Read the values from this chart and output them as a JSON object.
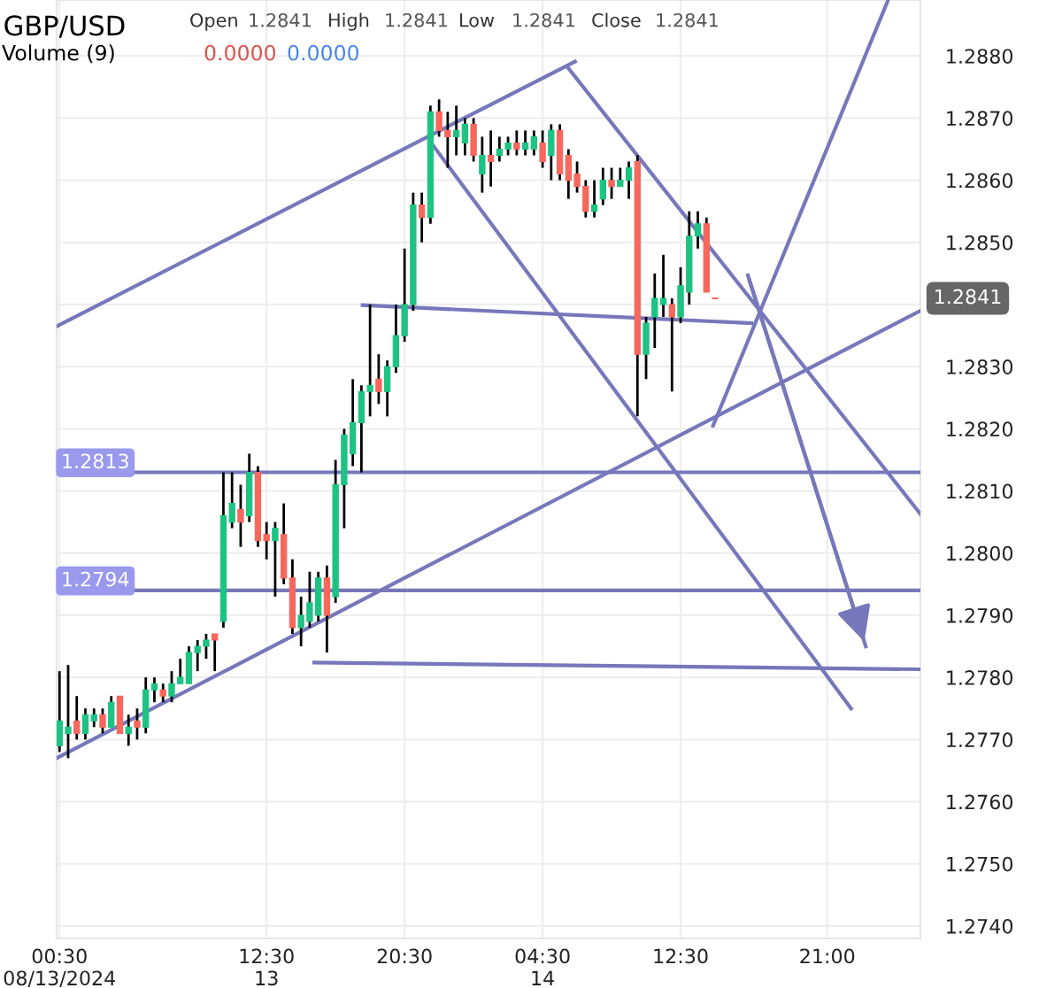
{
  "chart_data": {
    "type": "candlestick",
    "title": "GBP/USD",
    "annotations": [
      "Open",
      "1.2841",
      "High",
      "1.2841",
      "Low",
      "1.2841",
      "Close",
      "1.2841",
      "Volume (9)",
      "0.0000",
      "0.0000",
      "1.2841"
    ],
    "series": [
      {
        "type": "candlestick",
        "color": "#1dc383",
        "x": [
          "2024-08-13T00:30",
          "2024-08-13T01:00",
          "2024-08-13T02:00",
          "2024-08-13T02:30",
          "2024-08-13T03:30",
          "2024-08-13T04:30",
          "2024-08-13T05:30",
          "2024-08-13T06:00",
          "2024-08-13T07:00",
          "2024-08-13T07:30",
          "2024-08-13T08:00",
          "2024-08-13T08:30",
          "2024-08-13T09:00",
          "2024-08-13T10:00",
          "2024-08-13T10:30",
          "2024-08-13T11:30",
          "2024-08-13T13:00",
          "2024-08-13T14:30",
          "2024-08-13T15:00",
          "2024-08-13T15:30",
          "2024-08-13T16:30",
          "2024-08-13T17:00",
          "2024-08-13T17:30",
          "2024-08-13T18:00",
          "2024-08-13T18:30",
          "2024-08-13T19:30",
          "2024-08-13T20:00",
          "2024-08-13T20:30",
          "2024-08-13T21:00",
          "2024-08-13T22:00",
          "2024-08-13T23:30",
          "2024-08-14T00:00",
          "2024-08-14T01:00",
          "2024-08-14T02:00",
          "2024-08-14T02:30",
          "2024-08-14T03:30",
          "2024-08-14T04:00",
          "2024-08-14T05:00",
          "2024-08-14T07:30",
          "2024-08-14T08:00",
          "2024-08-14T09:00",
          "2024-08-14T09:30",
          "2024-08-14T10:30",
          "2024-08-14T11:00",
          "2024-08-14T11:30",
          "2024-08-14T12:30",
          "2024-08-14T13:00",
          "2024-08-14T13:30"
        ],
        "ohlc": [
          [
            1.2769,
            1.2781,
            1.2768,
            1.2773
          ],
          [
            1.2771,
            1.2782,
            1.2767,
            1.2772
          ],
          [
            1.2771,
            1.2775,
            1.277,
            1.2774
          ],
          [
            1.2773,
            1.2775,
            1.2772,
            1.2774
          ],
          [
            1.2772,
            1.2777,
            1.2772,
            1.2776
          ],
          [
            1.2771,
            1.2774,
            1.2769,
            1.2772
          ],
          [
            1.2772,
            1.278,
            1.2771,
            1.2778
          ],
          [
            1.2778,
            1.278,
            1.2776,
            1.2779
          ],
          [
            1.2777,
            1.2781,
            1.2776,
            1.2779
          ],
          [
            1.2779,
            1.2783,
            1.2779,
            1.278
          ],
          [
            1.2779,
            1.2785,
            1.2779,
            1.2784
          ],
          [
            1.2784,
            1.2786,
            1.2781,
            1.2785
          ],
          [
            1.2785,
            1.2787,
            1.2783,
            1.2786
          ],
          [
            1.2789,
            1.2813,
            1.2788,
            1.2806
          ],
          [
            1.2805,
            1.2813,
            1.2804,
            1.2808
          ],
          [
            1.2806,
            1.2816,
            1.2805,
            1.2813
          ],
          [
            1.2802,
            1.2805,
            1.2793,
            1.2804
          ],
          [
            1.2788,
            1.2793,
            1.2785,
            1.279
          ],
          [
            1.2789,
            1.2797,
            1.2788,
            1.2792
          ],
          [
            1.279,
            1.2797,
            1.2789,
            1.2796
          ],
          [
            1.2793,
            1.2815,
            1.2792,
            1.2811
          ],
          [
            1.2811,
            1.282,
            1.2804,
            1.2819
          ],
          [
            1.2816,
            1.2828,
            1.2814,
            1.2821
          ],
          [
            1.2821,
            1.2827,
            1.2813,
            1.2826
          ],
          [
            1.2826,
            1.284,
            1.2822,
            1.2827
          ],
          [
            1.2826,
            1.2831,
            1.2822,
            1.283
          ],
          [
            1.283,
            1.284,
            1.2829,
            1.2835
          ],
          [
            1.2835,
            1.2849,
            1.2834,
            1.284
          ],
          [
            1.284,
            1.2858,
            1.2839,
            1.2856
          ],
          [
            1.2854,
            1.2872,
            1.2853,
            1.2871
          ],
          [
            1.2867,
            1.2872,
            1.2864,
            1.2868
          ],
          [
            1.2866,
            1.287,
            1.2864,
            1.2869
          ],
          [
            1.2861,
            1.2867,
            1.2858,
            1.2864
          ],
          [
            1.2864,
            1.2867,
            1.2863,
            1.2865
          ],
          [
            1.2865,
            1.2867,
            1.2864,
            1.2866
          ],
          [
            1.2865,
            1.2868,
            1.2864,
            1.2866
          ],
          [
            1.2865,
            1.2868,
            1.2864,
            1.2867
          ],
          [
            1.2864,
            1.2869,
            1.286,
            1.2868
          ],
          [
            1.2855,
            1.286,
            1.2854,
            1.2856
          ],
          [
            1.2857,
            1.2862,
            1.2856,
            1.286
          ],
          [
            1.2859,
            1.2862,
            1.2859,
            1.286
          ],
          [
            1.286,
            1.2863,
            1.2857,
            1.2862
          ],
          [
            1.2832,
            1.2838,
            1.2828,
            1.2837
          ],
          [
            1.2838,
            1.2845,
            1.2833,
            1.2841
          ],
          [
            1.284,
            1.2848,
            1.2838,
            1.2841
          ],
          [
            1.2838,
            1.2846,
            1.2837,
            1.2843
          ],
          [
            1.2842,
            1.2855,
            1.284,
            1.2851
          ],
          [
            1.2851,
            1.2855,
            1.2849,
            1.2853
          ]
        ]
      },
      {
        "type": "candlestick",
        "color": "#f6675d",
        "x": [
          "2024-08-13T01:30",
          "2024-08-13T03:00",
          "2024-08-13T04:00",
          "2024-08-13T05:00",
          "2024-08-13T06:30",
          "2024-08-13T09:30",
          "2024-08-13T11:00",
          "2024-08-13T12:00",
          "2024-08-13T12:30",
          "2024-08-13T13:30",
          "2024-08-13T14:00",
          "2024-08-13T16:00",
          "2024-08-13T19:00",
          "2024-08-13T21:30",
          "2024-08-13T22:30",
          "2024-08-13T23:00",
          "2024-08-14T00:30",
          "2024-08-14T01:30",
          "2024-08-14T03:00",
          "2024-08-14T04:30",
          "2024-08-14T05:30",
          "2024-08-14T06:00",
          "2024-08-14T06:30",
          "2024-08-14T07:00",
          "2024-08-14T08:30",
          "2024-08-14T10:00",
          "2024-08-14T12:00",
          "2024-08-14T14:00",
          "2024-08-14T14:30"
        ],
        "ohlc": [
          [
            1.2773,
            1.2777,
            1.277,
            1.2771
          ],
          [
            1.2774,
            1.2775,
            1.2771,
            1.2772
          ],
          [
            1.2777,
            1.2777,
            1.2771,
            1.2771
          ],
          [
            1.2773,
            1.2775,
            1.277,
            1.2772
          ],
          [
            1.2778,
            1.2779,
            1.2776,
            1.2777
          ],
          [
            1.2787,
            1.2787,
            1.2781,
            1.2786
          ],
          [
            1.2807,
            1.2811,
            1.2801,
            1.2805
          ],
          [
            1.2813,
            1.2814,
            1.2801,
            1.2802
          ],
          [
            1.2803,
            1.2805,
            1.2799,
            1.2802
          ],
          [
            1.2803,
            1.2808,
            1.2795,
            1.2796
          ],
          [
            1.2796,
            1.2799,
            1.2787,
            1.2788
          ],
          [
            1.2796,
            1.2798,
            1.2784,
            1.279
          ],
          [
            1.2828,
            1.2832,
            1.2824,
            1.2826
          ],
          [
            1.2856,
            1.2858,
            1.285,
            1.2854
          ],
          [
            1.2871,
            1.2873,
            1.2867,
            1.2868
          ],
          [
            1.2868,
            1.2871,
            1.2862,
            1.2867
          ],
          [
            1.2869,
            1.287,
            1.2863,
            1.2864
          ],
          [
            1.2864,
            1.2868,
            1.2859,
            1.2863
          ],
          [
            1.2866,
            1.2868,
            1.2864,
            1.2865
          ],
          [
            1.2866,
            1.2868,
            1.2862,
            1.2863
          ],
          [
            1.2868,
            1.2869,
            1.286,
            1.2861
          ],
          [
            1.2864,
            1.2865,
            1.2857,
            1.286
          ],
          [
            1.2861,
            1.2863,
            1.2858,
            1.2859
          ],
          [
            1.2859,
            1.286,
            1.2854,
            1.2855
          ],
          [
            1.286,
            1.2862,
            1.2857,
            1.2859
          ],
          [
            1.2863,
            1.2864,
            1.2822,
            1.2832
          ],
          [
            1.284,
            1.2841,
            1.2826,
            1.2838
          ],
          [
            1.2853,
            1.2854,
            1.2842,
            1.2842
          ],
          [
            1.2841,
            1.2841,
            1.2841,
            1.2841
          ]
        ]
      },
      {
        "type": "line",
        "color": "#7777bb",
        "x": [
          "2024-08-13T00:20",
          "2024-08-14T06:23"
        ],
        "values": [
          1.28365,
          1.28791
        ]
      },
      {
        "type": "line",
        "color": "#7777bb",
        "x": [
          "2024-08-13T00:20",
          "2024-08-15T02:24"
        ],
        "values": [
          1.2767,
          1.2839
        ]
      },
      {
        "type": "line",
        "color": "#7777bb",
        "x": [
          "2024-08-14T05:55",
          "2024-08-15T02:24"
        ],
        "values": [
          1.28783,
          1.28063
        ]
      },
      {
        "type": "line",
        "color": "#7777bb",
        "x": [
          "2024-08-13T22:01",
          "2024-08-14T22:23"
        ],
        "values": [
          1.28661,
          1.2775
        ]
      },
      {
        "type": "line",
        "color": "#7777bb",
        "x": [
          "2024-08-13T18:04",
          "2024-08-14T16:36"
        ],
        "values": [
          1.28399,
          1.2837
        ]
      },
      {
        "type": "line",
        "color": "#7777bb",
        "x": [
          "2024-08-13T15:16",
          "2024-08-15T02:24"
        ],
        "values": [
          1.27824,
          1.27813
        ]
      },
      {
        "type": "line",
        "color": "#7777bb",
        "x": [
          "2024-08-14T14:23",
          "2024-08-15T00:30"
        ],
        "values": [
          1.28205,
          1.28888
        ]
      },
      {
        "type": "line",
        "color": "#7777bb",
        "x": [
          "2024-08-14T16:24",
          "2024-08-14T23:14"
        ],
        "values": [
          1.28447,
          1.2785
        ]
      }
    ],
    "ref_lines": [
      {
        "axis": "y",
        "value": 1.2813,
        "label": "1.2813",
        "color": "#7777bb"
      },
      {
        "axis": "y",
        "value": 1.2794,
        "label": "1.2794",
        "color": "#7777bb"
      }
    ],
    "xlim": [
      "2024-08-13T00:20",
      "2024-08-15T02:24"
    ],
    "xticks": [
      {
        "value": "2024-08-13T00:30",
        "label": "00:30\n08/13/2024"
      },
      {
        "value": "2024-08-13T12:30",
        "label": "12:30\n13"
      },
      {
        "value": "2024-08-13T20:30",
        "label": "20:30"
      },
      {
        "value": "2024-08-14T04:30",
        "label": "04:30\n14"
      },
      {
        "value": "2024-08-14T12:30",
        "label": "12:30"
      },
      {
        "value": "2024-08-14T21:00",
        "label": "21:00"
      }
    ],
    "ylim": [
      1.2738,
      1.2889
    ],
    "yticks": [
      {
        "value": 1.274,
        "label": "1.2740"
      },
      {
        "value": 1.275,
        "label": "1.2750"
      },
      {
        "value": 1.276,
        "label": "1.2760"
      },
      {
        "value": 1.277,
        "label": "1.2770"
      },
      {
        "value": 1.278,
        "label": "1.2780"
      },
      {
        "value": 1.279,
        "label": "1.2790"
      },
      {
        "value": 1.28,
        "label": "1.2800"
      },
      {
        "value": 1.281,
        "label": "1.2810"
      },
      {
        "value": 1.282,
        "label": "1.2820"
      },
      {
        "value": 1.283,
        "label": "1.2830"
      },
      {
        "value": 1.284,
        "label": null
      },
      {
        "value": 1.285,
        "label": "1.2850"
      },
      {
        "value": 1.286,
        "label": "1.2860"
      },
      {
        "value": 1.287,
        "label": "1.2870"
      },
      {
        "value": 1.288,
        "label": "1.2880"
      }
    ],
    "grid": true,
    "legend": false
  }
}
